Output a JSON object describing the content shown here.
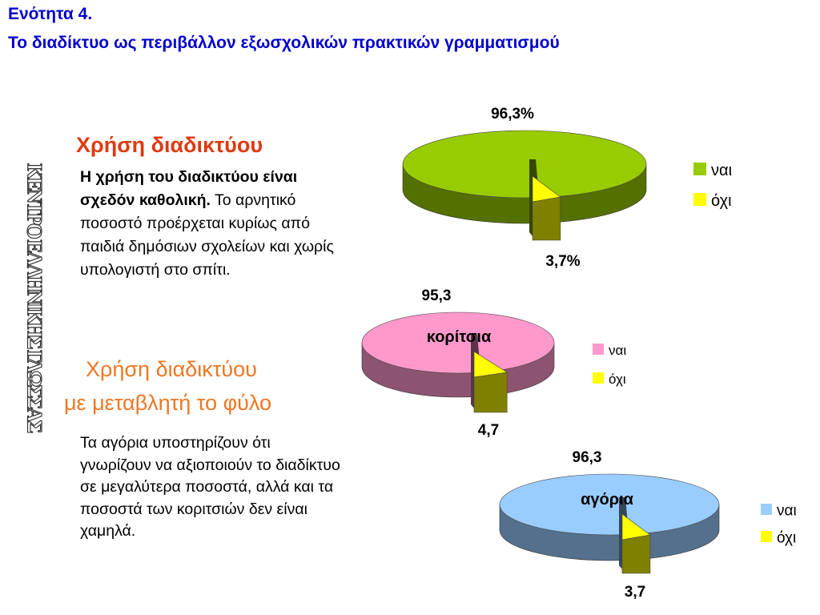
{
  "header": {
    "unit": "Ενότητα 4.",
    "title": "Το διαδίκτυο ως περιβάλλον εξωσχολικών πρακτικών γραμματισμού"
  },
  "sidebar_logo_text": "ΚΕΝΤΡΟ ΕΛΛΗΝΙΚΗΣ ΓΛΩΣΣΑΣ",
  "section1": {
    "heading": "Χρήση διαδικτύου",
    "bold_text": "Η χρήση του διαδικτύου είναι σχεδόν καθολική.",
    "text": " Το αρνητικό ποσοστό προέρχεται κυρίως από παιδιά δημόσιων σχολείων και χωρίς  υπολογιστή στο σπίτι."
  },
  "section2": {
    "heading_line1": "Χρήση διαδικτύου",
    "heading_line2": "με μεταβλητή το φύλο",
    "text": "Τα αγόρια υποστηρίζουν ότι γνωρίζουν να αξιοποιούν το διαδίκτυο σε μεγαλύτερα ποσοστά, αλλά και τα ποσοστά των κοριτσιών δεν είναι χαμηλά."
  },
  "colors": {
    "green": "#99cc00",
    "pink": "#ff99cc",
    "blue": "#99ccff",
    "yellow": "#ffff00",
    "title_blue": "#0000cc",
    "heading_red": "#e03a10",
    "heading_orange": "#ee7722"
  },
  "chart_data": [
    {
      "type": "pie",
      "title": "",
      "categories": [
        "ναι",
        "όχι"
      ],
      "values": [
        96.3,
        3.7
      ],
      "data_labels": [
        "96,3%",
        "3,7%"
      ],
      "colors": [
        "#99cc00",
        "#ffff00"
      ],
      "legend": [
        "ναι",
        "όχι"
      ],
      "legend_position": "right"
    },
    {
      "type": "pie",
      "title": "κορίτσια",
      "categories": [
        "ναι",
        "όχι"
      ],
      "values": [
        95.3,
        4.7
      ],
      "data_labels": [
        "95,3",
        "4,7"
      ],
      "colors": [
        "#ff99cc",
        "#ffff00"
      ],
      "legend": [
        "ναι",
        "όχι"
      ],
      "legend_position": "right"
    },
    {
      "type": "pie",
      "title": "αγόρια",
      "categories": [
        "ναι",
        "όχι"
      ],
      "values": [
        96.3,
        3.7
      ],
      "data_labels": [
        "96,3",
        "3,7"
      ],
      "colors": [
        "#99ccff",
        "#ffff00"
      ],
      "legend": [
        "ναι",
        "όχι"
      ],
      "legend_position": "right"
    }
  ]
}
